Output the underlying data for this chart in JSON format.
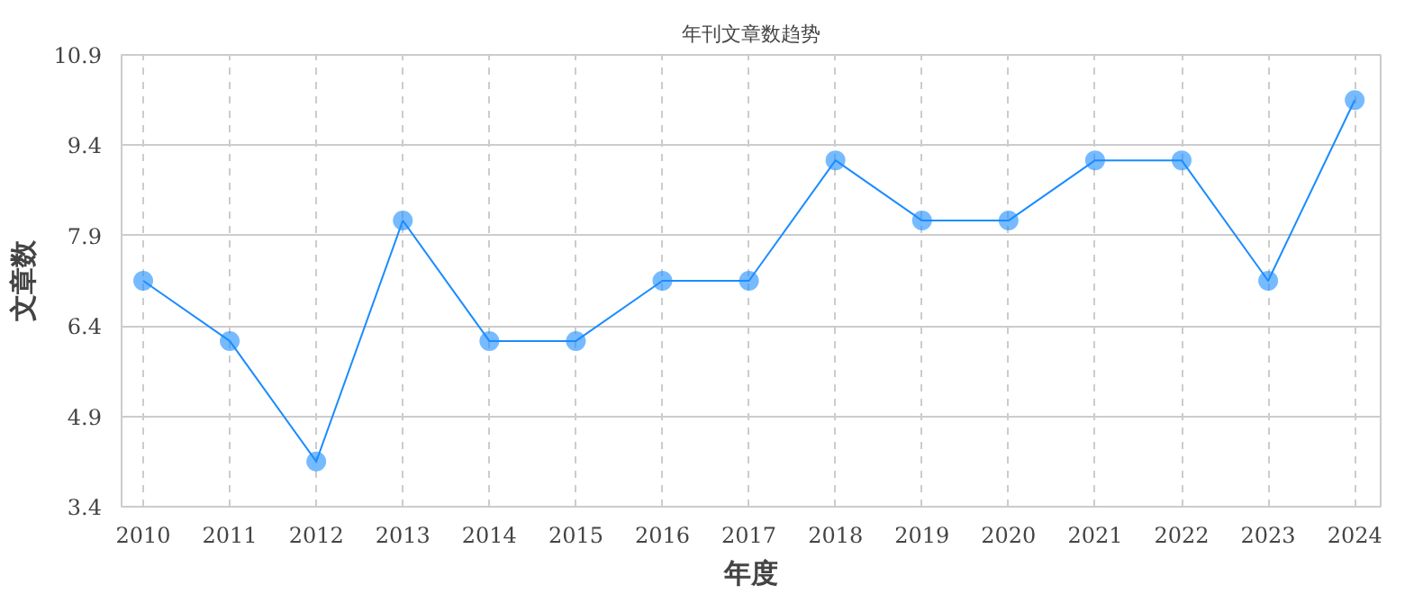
{
  "chart_data": {
    "type": "line",
    "title": "年刊文章数趋势",
    "xlabel": "年度",
    "ylabel": "文章数",
    "categories": [
      "2010",
      "2011",
      "2012",
      "2013",
      "2014",
      "2015",
      "2016",
      "2017",
      "2018",
      "2019",
      "2020",
      "2021",
      "2022",
      "2023",
      "2024"
    ],
    "series": [
      {
        "color": "#1a8cff",
        "values": [
          7.15,
          6.15,
          4.15,
          8.15,
          6.15,
          6.15,
          7.15,
          7.15,
          9.15,
          8.15,
          8.15,
          9.15,
          9.15,
          7.15,
          10.15
        ]
      }
    ],
    "ylim": [
      3.4,
      10.9
    ],
    "yticks": [
      3.4,
      4.9,
      6.4,
      7.9,
      9.4,
      10.9
    ],
    "grid": true,
    "marker": "circle",
    "line_style": "solid"
  }
}
